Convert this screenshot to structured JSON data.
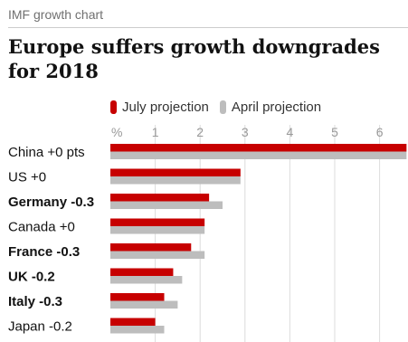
{
  "kicker": "IMF growth chart",
  "title": "Europe suffers growth downgrades for 2018",
  "chart_data": {
    "type": "bar",
    "orientation": "horizontal",
    "title": "Europe suffers growth downgrades for 2018",
    "axis_unit": "%",
    "x_ticks": [
      1,
      2,
      3,
      4,
      5,
      6
    ],
    "xlim": [
      0,
      6.6
    ],
    "grid": true,
    "legend_placement": "top",
    "categories": [
      "China +0 pts",
      "US +0",
      "Germany -0.3",
      "Canada +0",
      "France -0.3",
      "UK -0.2",
      "Italy -0.3",
      "Japan -0.2"
    ],
    "bold_categories": [
      "Germany -0.3",
      "France -0.3",
      "UK -0.2",
      "Italy -0.3"
    ],
    "series": [
      {
        "name": "July projection",
        "color": "#c70000",
        "values": [
          6.6,
          2.9,
          2.2,
          2.1,
          1.8,
          1.4,
          1.2,
          1.0
        ]
      },
      {
        "name": "April projection",
        "color": "#bdbdbd",
        "values": [
          6.6,
          2.9,
          2.5,
          2.1,
          2.1,
          1.6,
          1.5,
          1.2
        ]
      }
    ]
  }
}
